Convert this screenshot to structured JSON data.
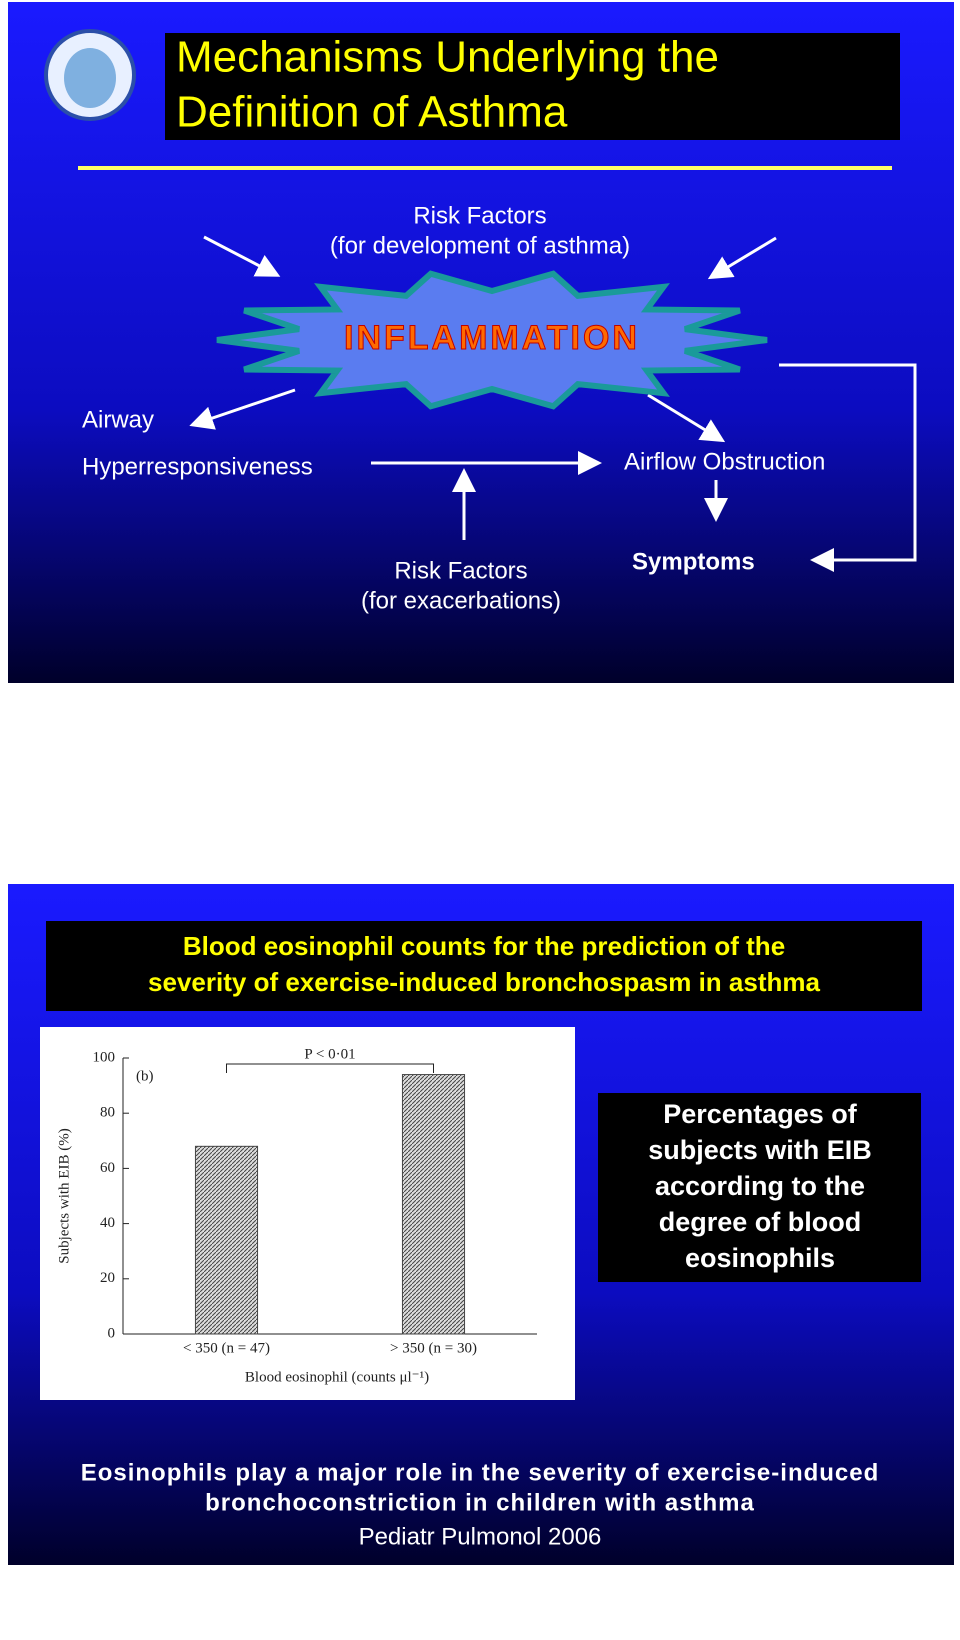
{
  "slide1": {
    "title_lines": [
      "Mechanisms Underlying the",
      "Definition of Asthma"
    ],
    "risk_dev": [
      "Risk Factors",
      "(for development of asthma)"
    ],
    "center": "INFLAMMATION",
    "ahr": [
      "Airway",
      "Hyperresponsiveness"
    ],
    "obstruction": "Airflow Obstruction",
    "risk_exac": [
      "Risk Factors",
      "(for exacerbations)"
    ],
    "symptoms": "Symptoms"
  },
  "slide2": {
    "heading_lines": [
      "Blood eosinophil counts for the prediction of the",
      "severity of exercise-induced bronchospasm in asthma"
    ],
    "note_lines": [
      "Percentages of",
      "subjects with EIB",
      "according to the",
      "degree of blood",
      "eosinophils"
    ],
    "footer_lines": [
      "Eosinophils play a major role in the severity of exercise-induced",
      "bronchoconstriction in children with asthma"
    ],
    "citation": "Pediatr Pulmonol 2006"
  },
  "chart_data": {
    "type": "bar",
    "panel_label": "(b)",
    "annotation": "P < 0·01",
    "categories": [
      "< 350 (n = 47)",
      "> 350 (n = 30)"
    ],
    "values": [
      68,
      94
    ],
    "color": "#444444",
    "x_label": "Blood eosinophil (counts μl⁻¹)",
    "y_label": "Subjects with EIB (%)",
    "ylim": [
      0,
      100
    ],
    "yticks": [
      0,
      20,
      40,
      60,
      80,
      100
    ]
  }
}
